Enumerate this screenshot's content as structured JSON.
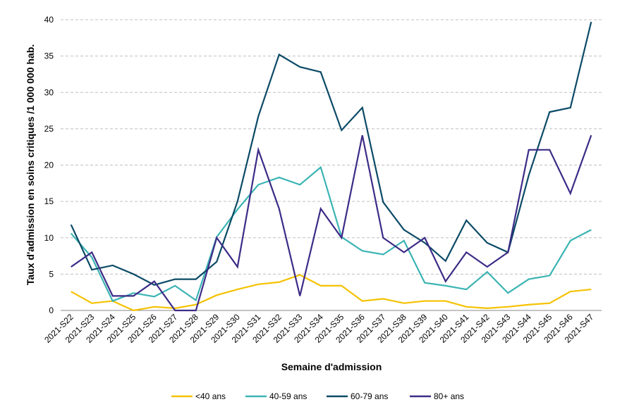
{
  "chart_data": {
    "type": "line",
    "x_label": "Semaine d'admission",
    "y_label": "Taux d'admission  en soins critiques /1 000 000 hab.",
    "categories": [
      "2021-S22",
      "2021-S23",
      "2021-S24",
      "2021-S25",
      "2021-S26",
      "2021-S27",
      "2021-S28",
      "2021-S29",
      "2021-S30",
      "2021-S31",
      "2021-S32",
      "2021-S33",
      "2021-S34",
      "2021-S35",
      "2021-S36",
      "2021-S37",
      "2021-S38",
      "2021-S39",
      "2021-S40",
      "2021-S41",
      "2021-S42",
      "2021-S43",
      "2021-S44",
      "2021-S45",
      "2021-S46",
      "2021-S47"
    ],
    "series": [
      {
        "name": "<40 ans",
        "color": "#f5c200",
        "values": [
          2.6,
          1.0,
          1.3,
          0,
          0.5,
          0.3,
          0.8,
          2.1,
          2.9,
          3.6,
          3.9,
          4.9,
          3.4,
          3.4,
          1.3,
          1.6,
          1.0,
          1.3,
          1.3,
          0.5,
          0.3,
          0.5,
          0.8,
          1.0,
          2.6,
          2.9
        ]
      },
      {
        "name": "40-59 ans",
        "color": "#3cb4b4",
        "values": [
          10.6,
          7.3,
          1.3,
          2.4,
          1.9,
          3.4,
          1.4,
          10.1,
          13.9,
          17.3,
          18.3,
          17.3,
          19.7,
          10.1,
          8.2,
          7.7,
          9.6,
          3.8,
          3.4,
          2.9,
          5.3,
          2.4,
          4.3,
          4.8,
          9.6,
          11.1
        ]
      },
      {
        "name": "60-79 ans",
        "color": "#0b4a66",
        "values": [
          11.8,
          5.6,
          6.2,
          5.0,
          3.5,
          4.3,
          4.3,
          6.7,
          15.0,
          26.7,
          35.2,
          33.5,
          32.8,
          24.8,
          27.9,
          14.9,
          11.1,
          9.3,
          6.8,
          12.4,
          9.3,
          8.0,
          18.6,
          27.3,
          27.9,
          39.7
        ]
      },
      {
        "name": "80+ ans",
        "color": "#3d2b87",
        "values": [
          6.0,
          8.0,
          2.0,
          2.0,
          4.0,
          0,
          0,
          10.0,
          6.0,
          22.1,
          14.0,
          2.0,
          14.0,
          10.0,
          24.1,
          10.0,
          8.0,
          10.0,
          4.0,
          8.0,
          6.0,
          8.0,
          22.1,
          22.1,
          16.1,
          24.1
        ]
      }
    ],
    "ylim": [
      0,
      40
    ],
    "yticks": [
      0,
      5,
      10,
      15,
      20,
      25,
      30,
      35,
      40
    ],
    "grid": true,
    "legend": "bottom"
  }
}
